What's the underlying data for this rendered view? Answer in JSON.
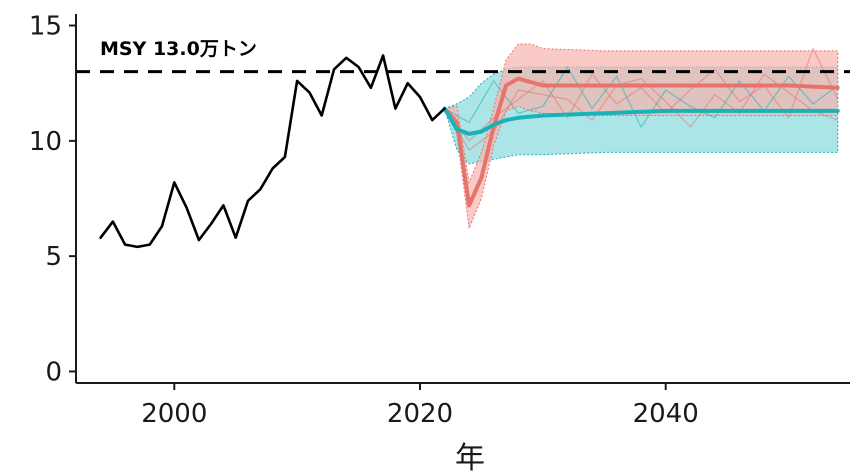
{
  "chart_data": {
    "type": "line",
    "title": "",
    "xlabel": "年",
    "ylabel": "",
    "xlim": [
      1992,
      2055
    ],
    "ylim": [
      -0.5,
      15.5
    ],
    "x_ticks": [
      2000,
      2020,
      2040
    ],
    "y_ticks": [
      0,
      5,
      10,
      15
    ],
    "grid": false,
    "legend": "none",
    "reference_line": {
      "y": 13.0,
      "style": "dashed",
      "label": "MSY 13.0万トン"
    },
    "colors": {
      "observed": "#000000",
      "scenario_red": "#e8736c",
      "scenario_teal": "#17b3b8",
      "band_red": "#f6b3ae",
      "band_teal": "#8fdcdf"
    },
    "series": [
      {
        "x": [
          1994,
          1995,
          1996,
          1997,
          1998,
          1999,
          2000,
          2001,
          2002,
          2003,
          2004,
          2005,
          2006,
          2007,
          2008,
          2009,
          2010,
          2011,
          2012,
          2013,
          2014,
          2015,
          2016,
          2017,
          2018,
          2019,
          2020,
          2021,
          2022
        ],
        "values": [
          5.8,
          6.5,
          5.5,
          5.4,
          5.5,
          6.3,
          8.2,
          7.1,
          5.7,
          6.4,
          7.2,
          5.8,
          7.4,
          7.9,
          8.8,
          9.3,
          12.6,
          12.1,
          11.1,
          13.1,
          13.6,
          13.2,
          12.3,
          13.7,
          11.4,
          12.5,
          11.9,
          10.9,
          11.4
        ]
      },
      {
        "x": [
          2022,
          2023,
          2024,
          2025,
          2026,
          2027,
          2028,
          2030,
          2035,
          2040,
          2045,
          2050,
          2054
        ],
        "values": [
          11.4,
          10.8,
          7.2,
          8.4,
          10.6,
          12.4,
          12.7,
          12.4,
          12.4,
          12.4,
          12.4,
          12.4,
          12.3
        ]
      },
      {
        "x": [
          2022,
          2023,
          2024,
          2025,
          2026,
          2027,
          2028,
          2030,
          2035,
          2040,
          2045,
          2050,
          2054
        ],
        "values": [
          11.4,
          10.5,
          10.3,
          10.4,
          10.7,
          10.9,
          11.0,
          11.1,
          11.2,
          11.3,
          11.3,
          11.3,
          11.3
        ]
      }
    ],
    "bands": [
      {
        "x": [
          2022,
          2023,
          2024,
          2025,
          2026,
          2027,
          2028,
          2029,
          2030,
          2035,
          2040,
          2045,
          2050,
          2054
        ],
        "upper": [
          11.4,
          11.5,
          8.2,
          9.5,
          11.4,
          13.5,
          14.2,
          14.2,
          14.0,
          13.9,
          13.9,
          13.9,
          13.9,
          13.9
        ],
        "lower": [
          11.4,
          10.3,
          6.2,
          7.5,
          9.8,
          11.3,
          11.5,
          11.3,
          11.2,
          11.1,
          11.1,
          11.1,
          11.1,
          11.1
        ]
      },
      {
        "x": [
          2022,
          2023,
          2024,
          2025,
          2026,
          2027,
          2028,
          2030,
          2035,
          2040,
          2045,
          2050,
          2054
        ],
        "upper": [
          11.4,
          11.6,
          11.9,
          12.5,
          12.9,
          13.1,
          13.2,
          13.2,
          13.2,
          13.2,
          13.2,
          13.2,
          13.2
        ],
        "lower": [
          11.4,
          9.6,
          9.0,
          9.1,
          9.2,
          9.3,
          9.4,
          9.4,
          9.5,
          9.5,
          9.5,
          9.5,
          9.5
        ]
      }
    ],
    "sample_trajectories": [
      {
        "x": [
          2022,
          2024,
          2026,
          2028,
          2030,
          2032,
          2034,
          2036,
          2038,
          2040,
          2042,
          2044,
          2046,
          2048,
          2050,
          2052,
          2054
        ],
        "values": [
          11.4,
          10.0,
          11.0,
          11.8,
          12.6,
          11.0,
          12.9,
          11.6,
          12.3,
          11.2,
          12.2,
          13.1,
          11.7,
          12.4,
          11.0,
          14.0,
          11.8
        ]
      },
      {
        "x": [
          2022,
          2024,
          2026,
          2028,
          2030,
          2032,
          2034,
          2036,
          2038,
          2040,
          2042,
          2044,
          2046,
          2048,
          2050,
          2052,
          2054
        ],
        "values": [
          11.4,
          10.8,
          12.6,
          11.2,
          11.5,
          13.2,
          11.4,
          12.8,
          10.6,
          12.2,
          11.5,
          11.0,
          12.6,
          11.3,
          12.8,
          11.6,
          12.4
        ]
      },
      {
        "x": [
          2022,
          2024,
          2026,
          2028,
          2030,
          2032,
          2034,
          2036,
          2038,
          2040,
          2042,
          2044,
          2046,
          2048,
          2050,
          2052,
          2054
        ],
        "values": [
          11.4,
          9.6,
          10.4,
          12.2,
          12.0,
          11.8,
          10.9,
          12.4,
          12.7,
          11.7,
          10.6,
          12.0,
          11.2,
          12.9,
          12.1,
          11.3,
          10.9
        ]
      }
    ]
  }
}
